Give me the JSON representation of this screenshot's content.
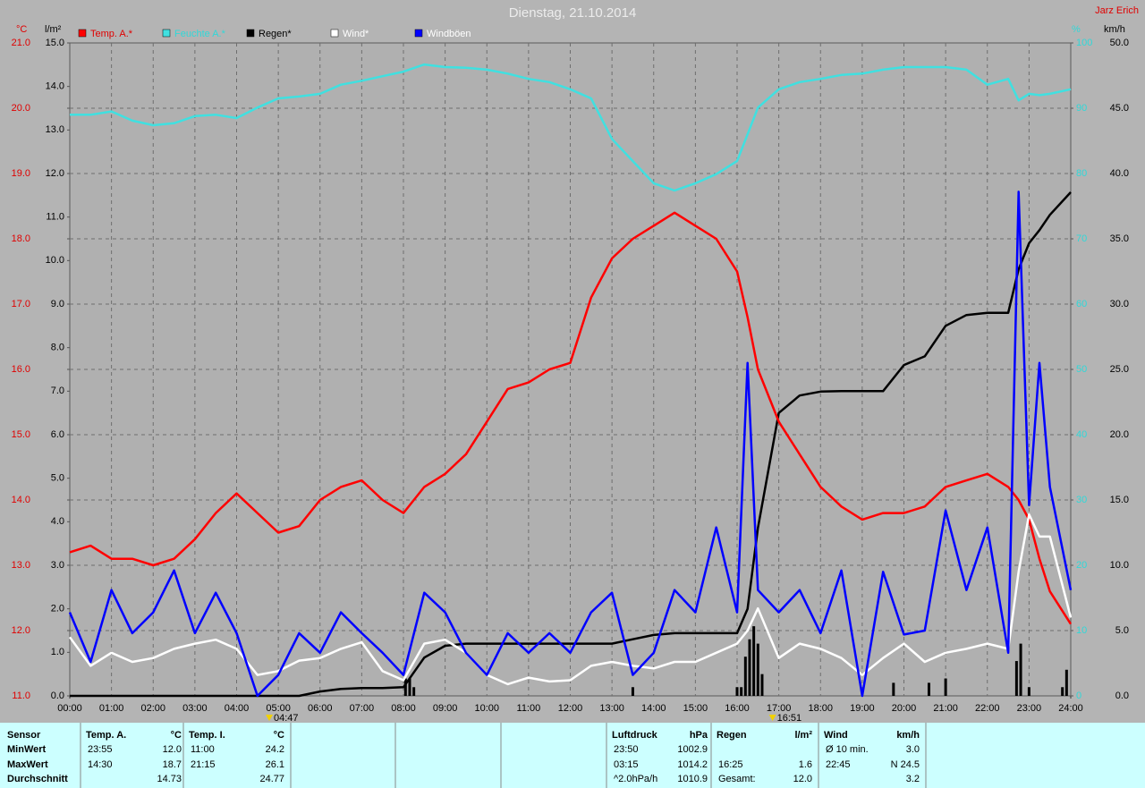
{
  "chart_data": {
    "type": "line",
    "title": "Dienstag, 21.10.2014",
    "author": "Jarz Erich",
    "y_label": "°C",
    "y2_label": "l/m²",
    "y3_label": "%",
    "y4_label": "km/h",
    "grid": true,
    "xlim": [
      0,
      24
    ],
    "xticks": [
      {
        "value": 0,
        "label": "00:00"
      },
      {
        "value": 1,
        "label": "01:00"
      },
      {
        "value": 2,
        "label": "02:00"
      },
      {
        "value": 3,
        "label": "03:00"
      },
      {
        "value": 4,
        "label": "04:00"
      },
      {
        "value": 5,
        "label": "05:00"
      },
      {
        "value": 6,
        "label": "06:00"
      },
      {
        "value": 7,
        "label": "07:00"
      },
      {
        "value": 8,
        "label": "08:00"
      },
      {
        "value": 9,
        "label": "09:00"
      },
      {
        "value": 10,
        "label": "10:00"
      },
      {
        "value": 11,
        "label": "11:00"
      },
      {
        "value": 12,
        "label": "12:00"
      },
      {
        "value": 13,
        "label": "13:00"
      },
      {
        "value": 14,
        "label": "14:00"
      },
      {
        "value": 15,
        "label": "15:00"
      },
      {
        "value": 16,
        "label": "16:00"
      },
      {
        "value": 17,
        "label": "17:00"
      },
      {
        "value": 18,
        "label": "18:00"
      },
      {
        "value": 19,
        "label": "19:00"
      },
      {
        "value": 20,
        "label": "20:00"
      },
      {
        "value": 21,
        "label": "21:00"
      },
      {
        "value": 22,
        "label": "22:00"
      },
      {
        "value": 23,
        "label": "23:00"
      },
      {
        "value": 24,
        "label": "24:00"
      }
    ],
    "ylim": [
      11,
      21
    ],
    "yticks": [
      {
        "value": 11,
        "label": "11.0"
      },
      {
        "value": 12,
        "label": "12.0"
      },
      {
        "value": 13,
        "label": "13.0"
      },
      {
        "value": 14,
        "label": "14.0"
      },
      {
        "value": 15,
        "label": "15.0"
      },
      {
        "value": 16,
        "label": "16.0"
      },
      {
        "value": 17,
        "label": "17.0"
      },
      {
        "value": 18,
        "label": "18.0"
      },
      {
        "value": 19,
        "label": "19.0"
      },
      {
        "value": 20,
        "label": "20.0"
      },
      {
        "value": 21,
        "label": "21.0"
      }
    ],
    "y2lim": [
      0,
      15
    ],
    "y2ticks": [
      {
        "value": 0,
        "label": "0.0"
      },
      {
        "value": 1,
        "label": "1.0"
      },
      {
        "value": 2,
        "label": "2.0"
      },
      {
        "value": 3,
        "label": "3.0"
      },
      {
        "value": 4,
        "label": "4.0"
      },
      {
        "value": 5,
        "label": "5.0"
      },
      {
        "value": 6,
        "label": "6.0"
      },
      {
        "value": 7,
        "label": "7.0"
      },
      {
        "value": 8,
        "label": "8.0"
      },
      {
        "value": 9,
        "label": "9.0"
      },
      {
        "value": 10,
        "label": "10.0"
      },
      {
        "value": 11,
        "label": "11.0"
      },
      {
        "value": 12,
        "label": "12.0"
      },
      {
        "value": 13,
        "label": "13.0"
      },
      {
        "value": 14,
        "label": "14.0"
      },
      {
        "value": 15,
        "label": "15.0"
      }
    ],
    "y3lim": [
      0,
      100
    ],
    "y3ticks": [
      0,
      10,
      20,
      30,
      40,
      50,
      60,
      70,
      80,
      90,
      100
    ],
    "y4lim": [
      0,
      50
    ],
    "y4ticks": [
      {
        "value": 0,
        "label": "0.0"
      },
      {
        "value": 5,
        "label": "5.0"
      },
      {
        "value": 10,
        "label": "10.0"
      },
      {
        "value": 15,
        "label": "15.0"
      },
      {
        "value": 20,
        "label": "20.0"
      },
      {
        "value": 25,
        "label": "25.0"
      },
      {
        "value": 30,
        "label": "30.0"
      },
      {
        "value": 35,
        "label": "35.0"
      },
      {
        "value": 40,
        "label": "40.0"
      },
      {
        "value": 45,
        "label": "45.0"
      },
      {
        "value": 50,
        "label": "50.0"
      }
    ],
    "x": [
      0,
      0.5,
      1,
      1.5,
      2,
      2.5,
      3,
      3.5,
      4,
      4.5,
      5,
      5.5,
      6,
      6.5,
      7,
      7.5,
      8,
      8.5,
      9,
      9.5,
      10,
      10.5,
      11,
      11.5,
      12,
      12.5,
      13,
      13.5,
      14,
      14.5,
      15,
      15.5,
      16,
      16.25,
      16.5,
      17,
      17.5,
      18,
      18.5,
      19,
      19.5,
      20,
      20.5,
      21,
      21.5,
      22,
      22.5,
      22.75,
      23,
      23.25,
      23.5,
      24
    ],
    "series": [
      {
        "name": "Temp. A.*",
        "color": "#ff0000",
        "axis": "y",
        "values": [
          13.2,
          13.3,
          13.1,
          13.1,
          13.0,
          13.1,
          13.4,
          13.8,
          14.1,
          13.8,
          13.5,
          13.6,
          14.0,
          14.2,
          14.3,
          14.0,
          13.8,
          14.2,
          14.4,
          14.7,
          15.2,
          15.7,
          15.8,
          16.0,
          16.1,
          17.1,
          17.7,
          18.0,
          18.2,
          18.4,
          18.2,
          18.0,
          17.5,
          16.8,
          16.0,
          15.2,
          14.7,
          14.2,
          13.9,
          13.7,
          13.8,
          13.8,
          13.9,
          14.2,
          14.3,
          14.4,
          14.2,
          14.0,
          13.7,
          13.1,
          12.6,
          12.1
        ]
      },
      {
        "name": "Feuchte A.*",
        "color": "#40e0e0",
        "axis": "y3",
        "values": [
          89.0,
          89.0,
          89.5,
          88.1,
          87.4,
          87.7,
          88.8,
          89.0,
          88.5,
          90.1,
          91.5,
          91.8,
          92.2,
          93.6,
          94.2,
          94.9,
          95.6,
          96.7,
          96.3,
          96.2,
          95.9,
          95.3,
          94.5,
          94.0,
          92.9,
          91.5,
          85.3,
          81.9,
          78.5,
          77.4,
          78.5,
          79.9,
          81.9,
          86.0,
          90.1,
          92.9,
          94.0,
          94.5,
          95.1,
          95.3,
          95.9,
          96.3,
          96.3,
          96.3,
          95.9,
          93.6,
          94.5,
          91.2,
          92.2,
          92.0,
          92.2,
          92.9
        ]
      },
      {
        "name": "Regen*",
        "color": "#000000",
        "axis": "y2",
        "values": [
          0,
          0,
          0,
          0,
          0,
          0,
          0,
          0,
          0,
          0,
          0,
          0,
          0.1,
          0.16,
          0.18,
          0.18,
          0.2,
          0.88,
          1.15,
          1.2,
          1.2,
          1.2,
          1.2,
          1.2,
          1.2,
          1.2,
          1.2,
          1.3,
          1.4,
          1.44,
          1.44,
          1.44,
          1.44,
          2.0,
          3.86,
          6.5,
          6.9,
          6.99,
          7.0,
          7.0,
          7.0,
          7.6,
          7.8,
          8.5,
          8.75,
          8.8,
          8.8,
          9.8,
          10.4,
          10.7,
          11.05,
          11.57
        ]
      },
      {
        "name": "Wind*",
        "color": "#ffffff",
        "axis": "y4",
        "values": [
          4.5,
          2.3,
          3.3,
          2.6,
          2.9,
          3.6,
          4.0,
          4.3,
          3.6,
          1.6,
          1.9,
          2.7,
          2.9,
          3.6,
          4.1,
          1.9,
          1.2,
          4.0,
          4.3,
          3.3,
          1.6,
          0.9,
          1.4,
          1.1,
          1.2,
          2.3,
          2.6,
          2.3,
          2.1,
          2.6,
          2.6,
          3.3,
          4.0,
          5.0,
          6.7,
          2.9,
          4.0,
          3.6,
          2.9,
          1.6,
          2.9,
          4.0,
          2.6,
          3.3,
          3.6,
          4.0,
          3.6,
          9.5,
          13.9,
          12.2,
          12.2,
          6.0
        ]
      },
      {
        "name": "Windböen",
        "color": "#0000ff",
        "axis": "y4",
        "values": [
          6.4,
          2.6,
          8.1,
          4.8,
          6.4,
          9.6,
          4.8,
          7.9,
          4.8,
          0,
          1.6,
          4.8,
          3.3,
          6.4,
          4.8,
          3.3,
          1.6,
          7.9,
          6.4,
          3.3,
          1.6,
          4.8,
          3.3,
          4.8,
          3.3,
          6.4,
          7.9,
          1.6,
          3.3,
          8.1,
          6.4,
          12.9,
          6.4,
          25.5,
          8.1,
          6.4,
          8.1,
          4.8,
          9.6,
          0,
          9.5,
          4.7,
          5.0,
          14.2,
          8.1,
          12.9,
          3.3,
          38.6,
          14.6,
          25.5,
          16.0,
          8.1
        ]
      }
    ],
    "bars": {
      "color": "#000000",
      "axis": "y2",
      "x": [
        8.05,
        8.15,
        8.25,
        13.5,
        16.0,
        16.1,
        16.2,
        16.3,
        16.4,
        16.5,
        16.6,
        19.75,
        20.6,
        21.0,
        22.7,
        22.8,
        23.0,
        23.8,
        23.9
      ],
      "values": [
        0.4,
        0.4,
        0.2,
        0.2,
        0.2,
        0.2,
        0.9,
        1.3,
        1.6,
        1.2,
        0.5,
        0.3,
        0.3,
        0.4,
        0.8,
        1.2,
        0.2,
        0.2,
        0.6
      ]
    },
    "markers": [
      {
        "x": 4.7833,
        "label": "04:47"
      },
      {
        "x": 16.85,
        "label": "16:51"
      }
    ]
  },
  "table": {
    "row_labels": [
      "Sensor",
      "MinWert",
      "MaxWert",
      "Durchschnitt"
    ],
    "groups": [
      {
        "header": "Temp. A.",
        "unit": "°C",
        "cells": [
          [
            "23:55",
            "12.0"
          ],
          [
            "14:30",
            "18.7"
          ],
          [
            null,
            "14.73"
          ]
        ]
      },
      {
        "header": "Temp. I.",
        "unit": "°C",
        "cells": [
          [
            "11:00",
            "24.2"
          ],
          [
            "21:15",
            "26.1"
          ],
          [
            null,
            "24.77"
          ]
        ]
      },
      {
        "header": "Luftdruck",
        "unit": "hPa",
        "cells": [
          [
            "23:50",
            "1002.9"
          ],
          [
            "03:15",
            "1014.2"
          ],
          [
            "^2.0hPa/h",
            "1010.9"
          ]
        ]
      },
      {
        "header": "Regen",
        "unit": "l/m²",
        "cells": [
          [
            null,
            null
          ],
          [
            "16:25",
            "1.6"
          ],
          [
            "Gesamt:",
            "12.0"
          ]
        ]
      },
      {
        "header": "Wind",
        "unit": "km/h",
        "cells": [
          [
            "Ø 10 min.",
            "3.0"
          ],
          [
            "22:45",
            "N 24.5"
          ],
          [
            null,
            "3.2"
          ]
        ]
      }
    ]
  }
}
